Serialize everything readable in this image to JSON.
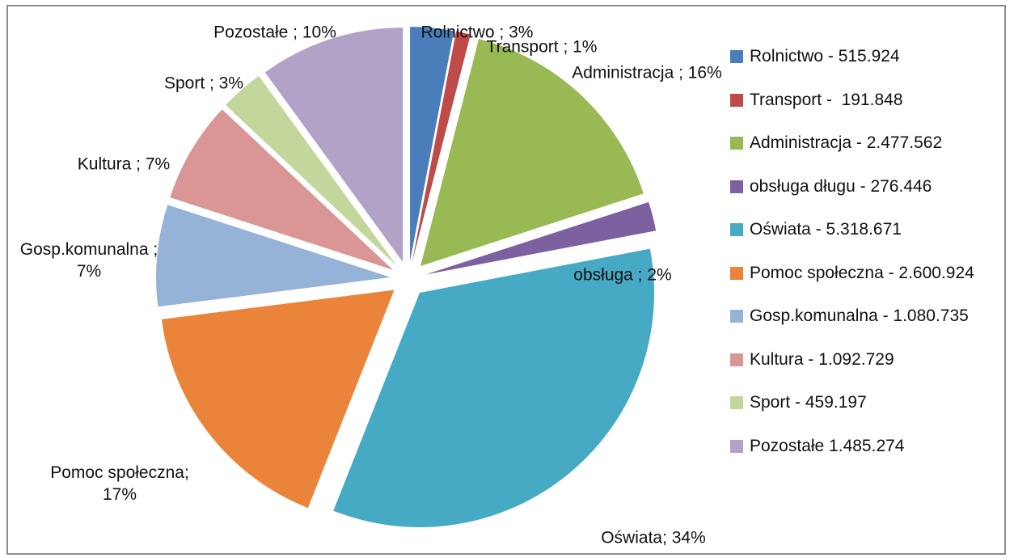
{
  "chart_data": {
    "type": "pie",
    "categories": [
      "Rolnictwo - 515.924",
      "Transport -  191.848",
      "Administracja - 2.477.562",
      "obsługa długu - 276.446",
      "Oświata - 5.318.671",
      "Pomoc społeczna - 2.600.924",
      "Gosp.komunalna - 1.080.735",
      "Kultura - 1.092.729",
      "Sport - 459.197",
      "Pozostałe 1.485.274"
    ],
    "values": [
      3,
      1,
      16,
      2,
      34,
      17,
      7,
      7,
      3,
      10
    ],
    "value_labels": [
      "Rolnictwo ; 3%",
      "Transport ; 1%",
      "Administracja ; 16%",
      "obsługa ; 2%",
      "Oświata; 34%",
      "Pomoc społeczna; 17%",
      "Gosp.komunalna ; 7%",
      "Kultura ; 7%",
      "Sport ; 3%",
      "Pozostałe ; 10%"
    ],
    "colors": [
      "#4a7ebb",
      "#be4b48",
      "#98b954",
      "#7d60a0",
      "#46aac5",
      "#e9843a",
      "#95b3d7",
      "#d99694",
      "#c3d69b",
      "#b3a2c7"
    ],
    "legend": "right"
  }
}
